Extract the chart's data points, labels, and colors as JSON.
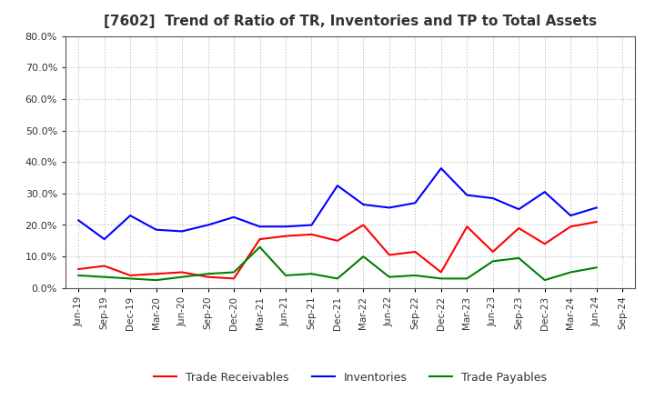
{
  "title": "[7602]  Trend of Ratio of TR, Inventories and TP to Total Assets",
  "x_labels": [
    "Jun-19",
    "Sep-19",
    "Dec-19",
    "Mar-20",
    "Jun-20",
    "Sep-20",
    "Dec-20",
    "Mar-21",
    "Jun-21",
    "Sep-21",
    "Dec-21",
    "Mar-22",
    "Jun-22",
    "Sep-22",
    "Dec-22",
    "Mar-23",
    "Jun-23",
    "Sep-23",
    "Dec-23",
    "Mar-24",
    "Jun-24",
    "Sep-24"
  ],
  "trade_receivables": [
    0.06,
    0.07,
    0.04,
    0.045,
    0.05,
    0.035,
    0.03,
    0.155,
    0.165,
    0.17,
    0.15,
    0.2,
    0.105,
    0.115,
    0.05,
    0.195,
    0.115,
    0.19,
    0.14,
    0.195,
    0.21,
    null
  ],
  "inventories": [
    0.215,
    0.155,
    0.23,
    0.185,
    0.18,
    0.2,
    0.225,
    0.195,
    0.195,
    0.2,
    0.325,
    0.265,
    0.255,
    0.27,
    0.38,
    0.295,
    0.285,
    0.25,
    0.305,
    0.23,
    0.255,
    null
  ],
  "trade_payables": [
    0.04,
    0.035,
    0.03,
    0.025,
    0.035,
    0.045,
    0.05,
    0.13,
    0.04,
    0.045,
    0.03,
    0.1,
    0.035,
    0.04,
    0.03,
    0.03,
    0.085,
    0.095,
    0.025,
    0.05,
    0.065,
    null
  ],
  "tr_color": "#ff0000",
  "inv_color": "#0000ff",
  "tp_color": "#008000",
  "ylim": [
    0.0,
    0.8
  ],
  "yticks": [
    0.0,
    0.1,
    0.2,
    0.3,
    0.4,
    0.5,
    0.6,
    0.7,
    0.8
  ],
  "legend_labels": [
    "Trade Receivables",
    "Inventories",
    "Trade Payables"
  ],
  "bg_color": "#ffffff",
  "title_color": "#333333",
  "grid_color": "#aaaaaa",
  "tick_label_color": "#333333"
}
